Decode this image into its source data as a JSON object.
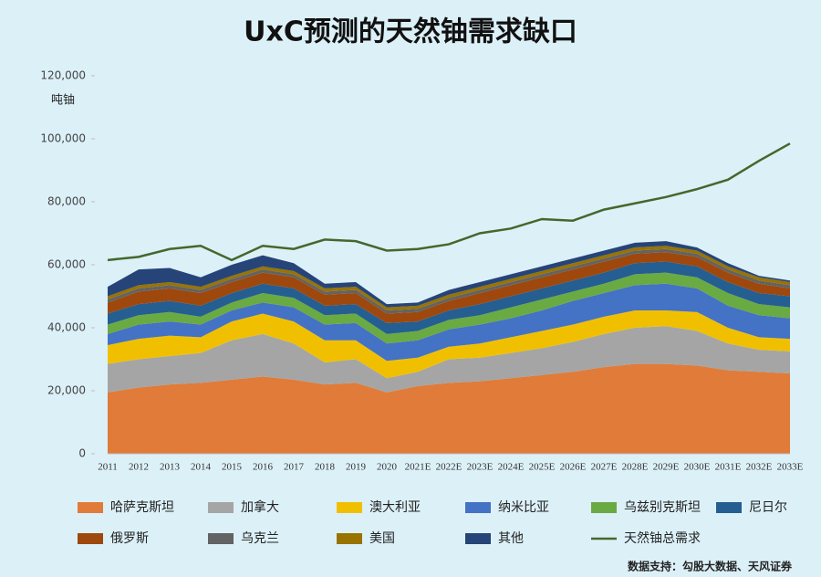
{
  "chart_data": {
    "type": "stacked_area_line",
    "title": "UxC预测的天然铀需求缺口",
    "y_axis_label": "吨铀",
    "source": "数据支持：勾股大数据、天风证券",
    "categories": [
      "2011",
      "2012",
      "2013",
      "2014",
      "2015",
      "2016",
      "2017",
      "2018",
      "2019",
      "2020",
      "2021E",
      "2022E",
      "2023E",
      "2024E",
      "2025E",
      "2026E",
      "2027E",
      "2028E",
      "2029E",
      "2030E",
      "2031E",
      "2032E",
      "2033E"
    ],
    "ylim": [
      0,
      120000
    ],
    "yticks": [
      0,
      {
        "value": 20000,
        "label": "20,000"
      },
      {
        "value": 40000,
        "label": "40,000"
      },
      {
        "value": 60000,
        "label": "60,000"
      },
      {
        "value": 80000,
        "label": "80,000"
      },
      {
        "value": 100000,
        "label": "100,000"
      },
      {
        "value": 120000,
        "label": "120,000"
      }
    ],
    "grid": false,
    "series": [
      {
        "name": "哈萨克斯坦",
        "color": "#e07b39",
        "values": [
          19500,
          21000,
          22000,
          22500,
          23500,
          24500,
          23500,
          22000,
          22500,
          19500,
          21500,
          22500,
          23000,
          24000,
          25000,
          26000,
          27500,
          28500,
          28500,
          28000,
          26500,
          26000,
          25500
        ]
      },
      {
        "name": "加拿大",
        "color": "#a5a5a5",
        "values": [
          9000,
          9000,
          9000,
          9500,
          12500,
          13500,
          11500,
          7000,
          7500,
          4500,
          4500,
          7500,
          7500,
          8000,
          8500,
          9500,
          10500,
          11500,
          12000,
          11000,
          8500,
          7000,
          7000
        ]
      },
      {
        "name": "澳大利亚",
        "color": "#f0c000",
        "values": [
          6000,
          6500,
          6500,
          5000,
          6000,
          6500,
          7000,
          7000,
          6000,
          5500,
          4500,
          4000,
          4500,
          5000,
          5500,
          5500,
          5500,
          5500,
          5000,
          6000,
          5000,
          4000,
          4000
        ]
      },
      {
        "name": "纳米比亚",
        "color": "#4472c4",
        "values": [
          3500,
          4500,
          4500,
          4000,
          3500,
          3500,
          4500,
          5000,
          5500,
          5500,
          5500,
          5500,
          6000,
          6000,
          6500,
          7500,
          7500,
          8000,
          8500,
          7500,
          7000,
          7000,
          6500
        ]
      },
      {
        "name": "乌兹别克斯坦",
        "color": "#6aaa43",
        "values": [
          3000,
          3000,
          3000,
          2500,
          2500,
          3000,
          3000,
          3000,
          3000,
          3000,
          3000,
          3000,
          3000,
          3500,
          3500,
          3000,
          3000,
          3500,
          3500,
          3500,
          4000,
          3500,
          3500
        ]
      },
      {
        "name": "尼日尔",
        "color": "#255e91",
        "values": [
          3500,
          3500,
          3500,
          3500,
          3000,
          3000,
          3000,
          3000,
          3000,
          3500,
          3000,
          3000,
          3500,
          3500,
          3500,
          3500,
          3500,
          3500,
          3500,
          3500,
          3500,
          3500,
          3500
        ]
      },
      {
        "name": "俄罗斯",
        "color": "#9e480e",
        "values": [
          3500,
          4000,
          4000,
          4000,
          3500,
          3500,
          3500,
          3500,
          3500,
          3000,
          3000,
          3000,
          3500,
          3500,
          3500,
          3500,
          3500,
          3000,
          3000,
          3000,
          3000,
          3000,
          2500
        ]
      },
      {
        "name": "乌克兰",
        "color": "#636363",
        "values": [
          1000,
          1000,
          1000,
          1000,
          1000,
          1000,
          1000,
          1000,
          1000,
          1000,
          1000,
          1000,
          1000,
          1000,
          1000,
          1000,
          1000,
          1000,
          1000,
          1000,
          1000,
          1000,
          1000
        ]
      },
      {
        "name": "美国",
        "color": "#997300",
        "values": [
          1000,
          1000,
          1000,
          1000,
          1000,
          1000,
          1000,
          1000,
          1000,
          1000,
          1000,
          1000,
          1000,
          1000,
          1000,
          1000,
          1000,
          1000,
          1000,
          1000,
          1000,
          1000,
          1000
        ]
      },
      {
        "name": "其他",
        "color": "#264478",
        "values": [
          3000,
          5000,
          4500,
          3000,
          3500,
          3500,
          2500,
          1500,
          1500,
          1000,
          1000,
          1500,
          1500,
          1500,
          1500,
          1500,
          1500,
          1500,
          1500,
          1000,
          1000,
          500,
          500
        ]
      }
    ],
    "line": {
      "name": "天然铀总需求",
      "color": "#43682b",
      "values": [
        61500,
        62500,
        65000,
        66000,
        61500,
        66000,
        65000,
        68000,
        67500,
        64500,
        65000,
        66500,
        70000,
        71500,
        74500,
        74000,
        77500,
        79500,
        81500,
        84000,
        87000,
        93000,
        98500
      ]
    }
  }
}
